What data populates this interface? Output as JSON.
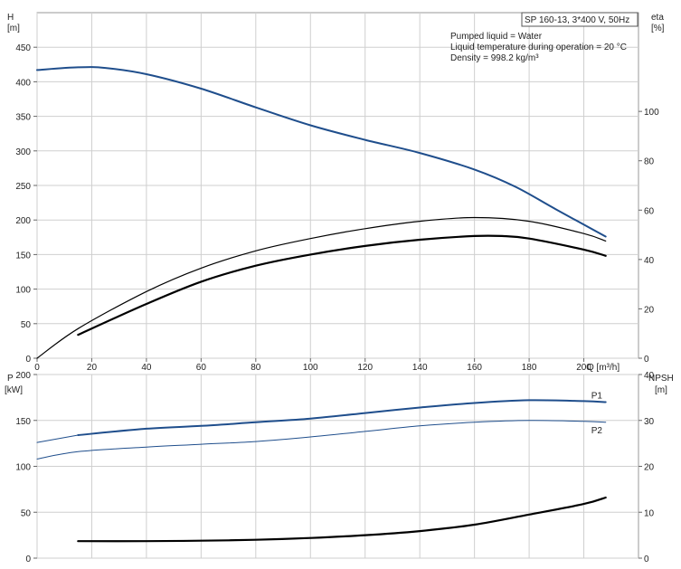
{
  "chart_data": [
    {
      "type": "line",
      "panel": "head-efficiency",
      "title": "SP 160-13, 3*400 V, 50Hz",
      "info_lines": [
        "Pumped liquid = Water",
        "Liquid temperature during operation = 20 °C",
        "Density = 998.2 kg/m³"
      ],
      "left_axis_label": [
        "H",
        "[m]"
      ],
      "right_axis_label": [
        "eta",
        "[%]"
      ],
      "x_axis_label": "Q [m³/h]",
      "xlim": [
        0,
        220
      ],
      "ylim_left": [
        0,
        500
      ],
      "ylim_right": [
        0,
        140
      ],
      "x_ticks": [
        0,
        20,
        40,
        60,
        80,
        100,
        120,
        140,
        160,
        180,
        200
      ],
      "y_ticks_left": [
        0,
        50,
        100,
        150,
        200,
        250,
        300,
        350,
        400,
        450
      ],
      "y_ticks_right": [
        0,
        20,
        40,
        60,
        80,
        100
      ],
      "grid": true,
      "series": [
        {
          "axis": "left",
          "color": "#1f4e8c",
          "width": 2.0,
          "x": [
            0,
            15,
            25,
            40,
            60,
            80,
            100,
            120,
            140,
            160,
            175,
            190,
            208
          ],
          "y": [
            417,
            421,
            420,
            411,
            390,
            363,
            337,
            316,
            297,
            273,
            248,
            215,
            176
          ]
        },
        {
          "axis": "right",
          "color": "#000000",
          "width": 1.2,
          "x": [
            0,
            15,
            40,
            60,
            80,
            100,
            120,
            140,
            160,
            180,
            200,
            208
          ],
          "y": [
            0,
            12,
            27,
            36.5,
            43.5,
            48.5,
            52.5,
            55.5,
            57,
            55.5,
            50.5,
            47.5
          ]
        },
        {
          "axis": "right",
          "color": "#000000",
          "width": 2.2,
          "x": [
            15,
            40,
            60,
            80,
            100,
            120,
            140,
            160,
            170,
            180,
            200,
            208
          ],
          "y": [
            9.5,
            22,
            31,
            37.5,
            42,
            45.5,
            48,
            49.5,
            49.5,
            48.5,
            44,
            41.5
          ]
        }
      ]
    },
    {
      "type": "line",
      "panel": "power-npsh",
      "left_axis_label": [
        "P",
        "[kW]"
      ],
      "right_axis_label": [
        "NPSH",
        "[m]"
      ],
      "xlim": [
        0,
        220
      ],
      "ylim_left": [
        0,
        200
      ],
      "ylim_right": [
        0,
        40
      ],
      "y_ticks_left": [
        0,
        50,
        100,
        150,
        200
      ],
      "y_ticks_right": [
        0,
        10,
        20,
        30,
        40
      ],
      "grid": true,
      "series": [
        {
          "name": "P1",
          "axis": "left",
          "color": "#1f4e8c",
          "width": 2.0,
          "label_side": "above",
          "x": [
            15,
            40,
            60,
            80,
            100,
            120,
            140,
            160,
            180,
            200,
            208
          ],
          "y": [
            134,
            141,
            144,
            148,
            152,
            158,
            164,
            169,
            172,
            171,
            170
          ]
        },
        {
          "name": "",
          "axis": "left",
          "color": "#1f4e8c",
          "width": 1.0,
          "x": [
            0,
            15
          ],
          "y": [
            126,
            134
          ]
        },
        {
          "name": "P2",
          "axis": "left",
          "color": "#1f4e8c",
          "width": 1.0,
          "label_side": "below",
          "x": [
            0,
            15,
            40,
            60,
            80,
            100,
            120,
            140,
            160,
            180,
            200,
            208
          ],
          "y": [
            108,
            116,
            121,
            124,
            127,
            132,
            138,
            144,
            148,
            150,
            149,
            148
          ]
        },
        {
          "name": "",
          "axis": "right",
          "color": "#000000",
          "width": 2.2,
          "x": [
            15,
            40,
            60,
            80,
            100,
            120,
            140,
            160,
            180,
            200,
            208
          ],
          "y": [
            3.7,
            3.7,
            3.8,
            4.0,
            4.4,
            5.0,
            5.9,
            7.3,
            9.5,
            11.8,
            13.2
          ]
        }
      ]
    }
  ]
}
